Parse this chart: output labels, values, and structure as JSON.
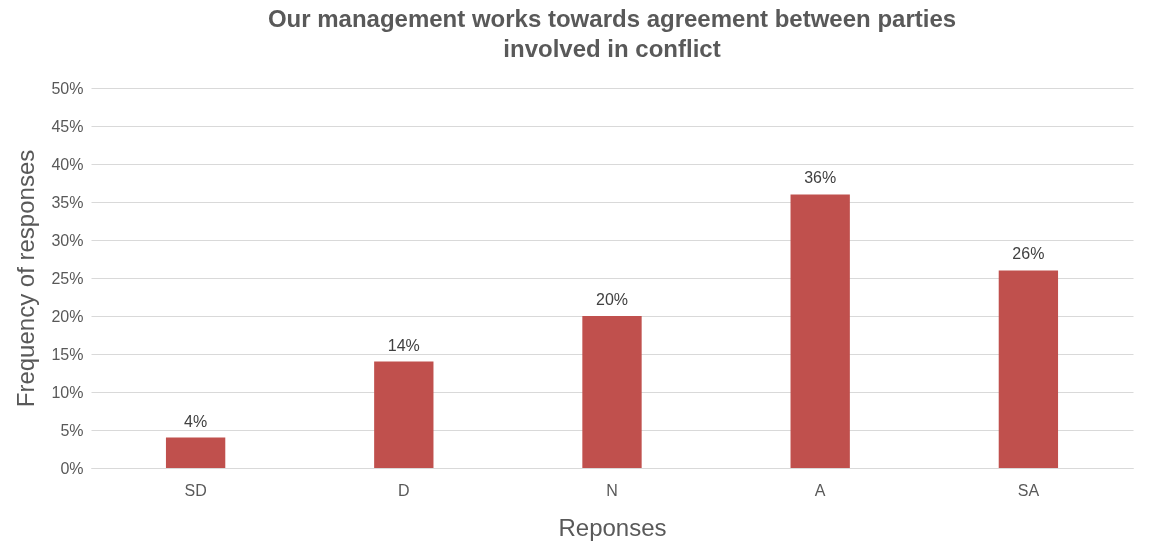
{
  "chart_data": {
    "type": "bar",
    "title": "Our management works towards agreement between parties involved in conflict",
    "xlabel": "Reponses",
    "ylabel": "Frequency of responses",
    "categories": [
      "SD",
      "D",
      "N",
      "A",
      "SA"
    ],
    "values": [
      4,
      14,
      20,
      36,
      26
    ],
    "value_labels": [
      "4%",
      "14%",
      "20%",
      "36%",
      "26%"
    ],
    "color": "#c0504d",
    "ylim": [
      0,
      50
    ],
    "yticks": [
      {
        "value": 0,
        "label": "0%"
      },
      {
        "value": 5,
        "label": "5%"
      },
      {
        "value": 10,
        "label": "10%"
      },
      {
        "value": 15,
        "label": "15%"
      },
      {
        "value": 20,
        "label": "20%"
      },
      {
        "value": 25,
        "label": "25%"
      },
      {
        "value": 30,
        "label": "30%"
      },
      {
        "value": 35,
        "label": "35%"
      },
      {
        "value": 40,
        "label": "40%"
      },
      {
        "value": 45,
        "label": "45%"
      },
      {
        "value": 50,
        "label": "50%"
      }
    ],
    "grid": "y"
  }
}
